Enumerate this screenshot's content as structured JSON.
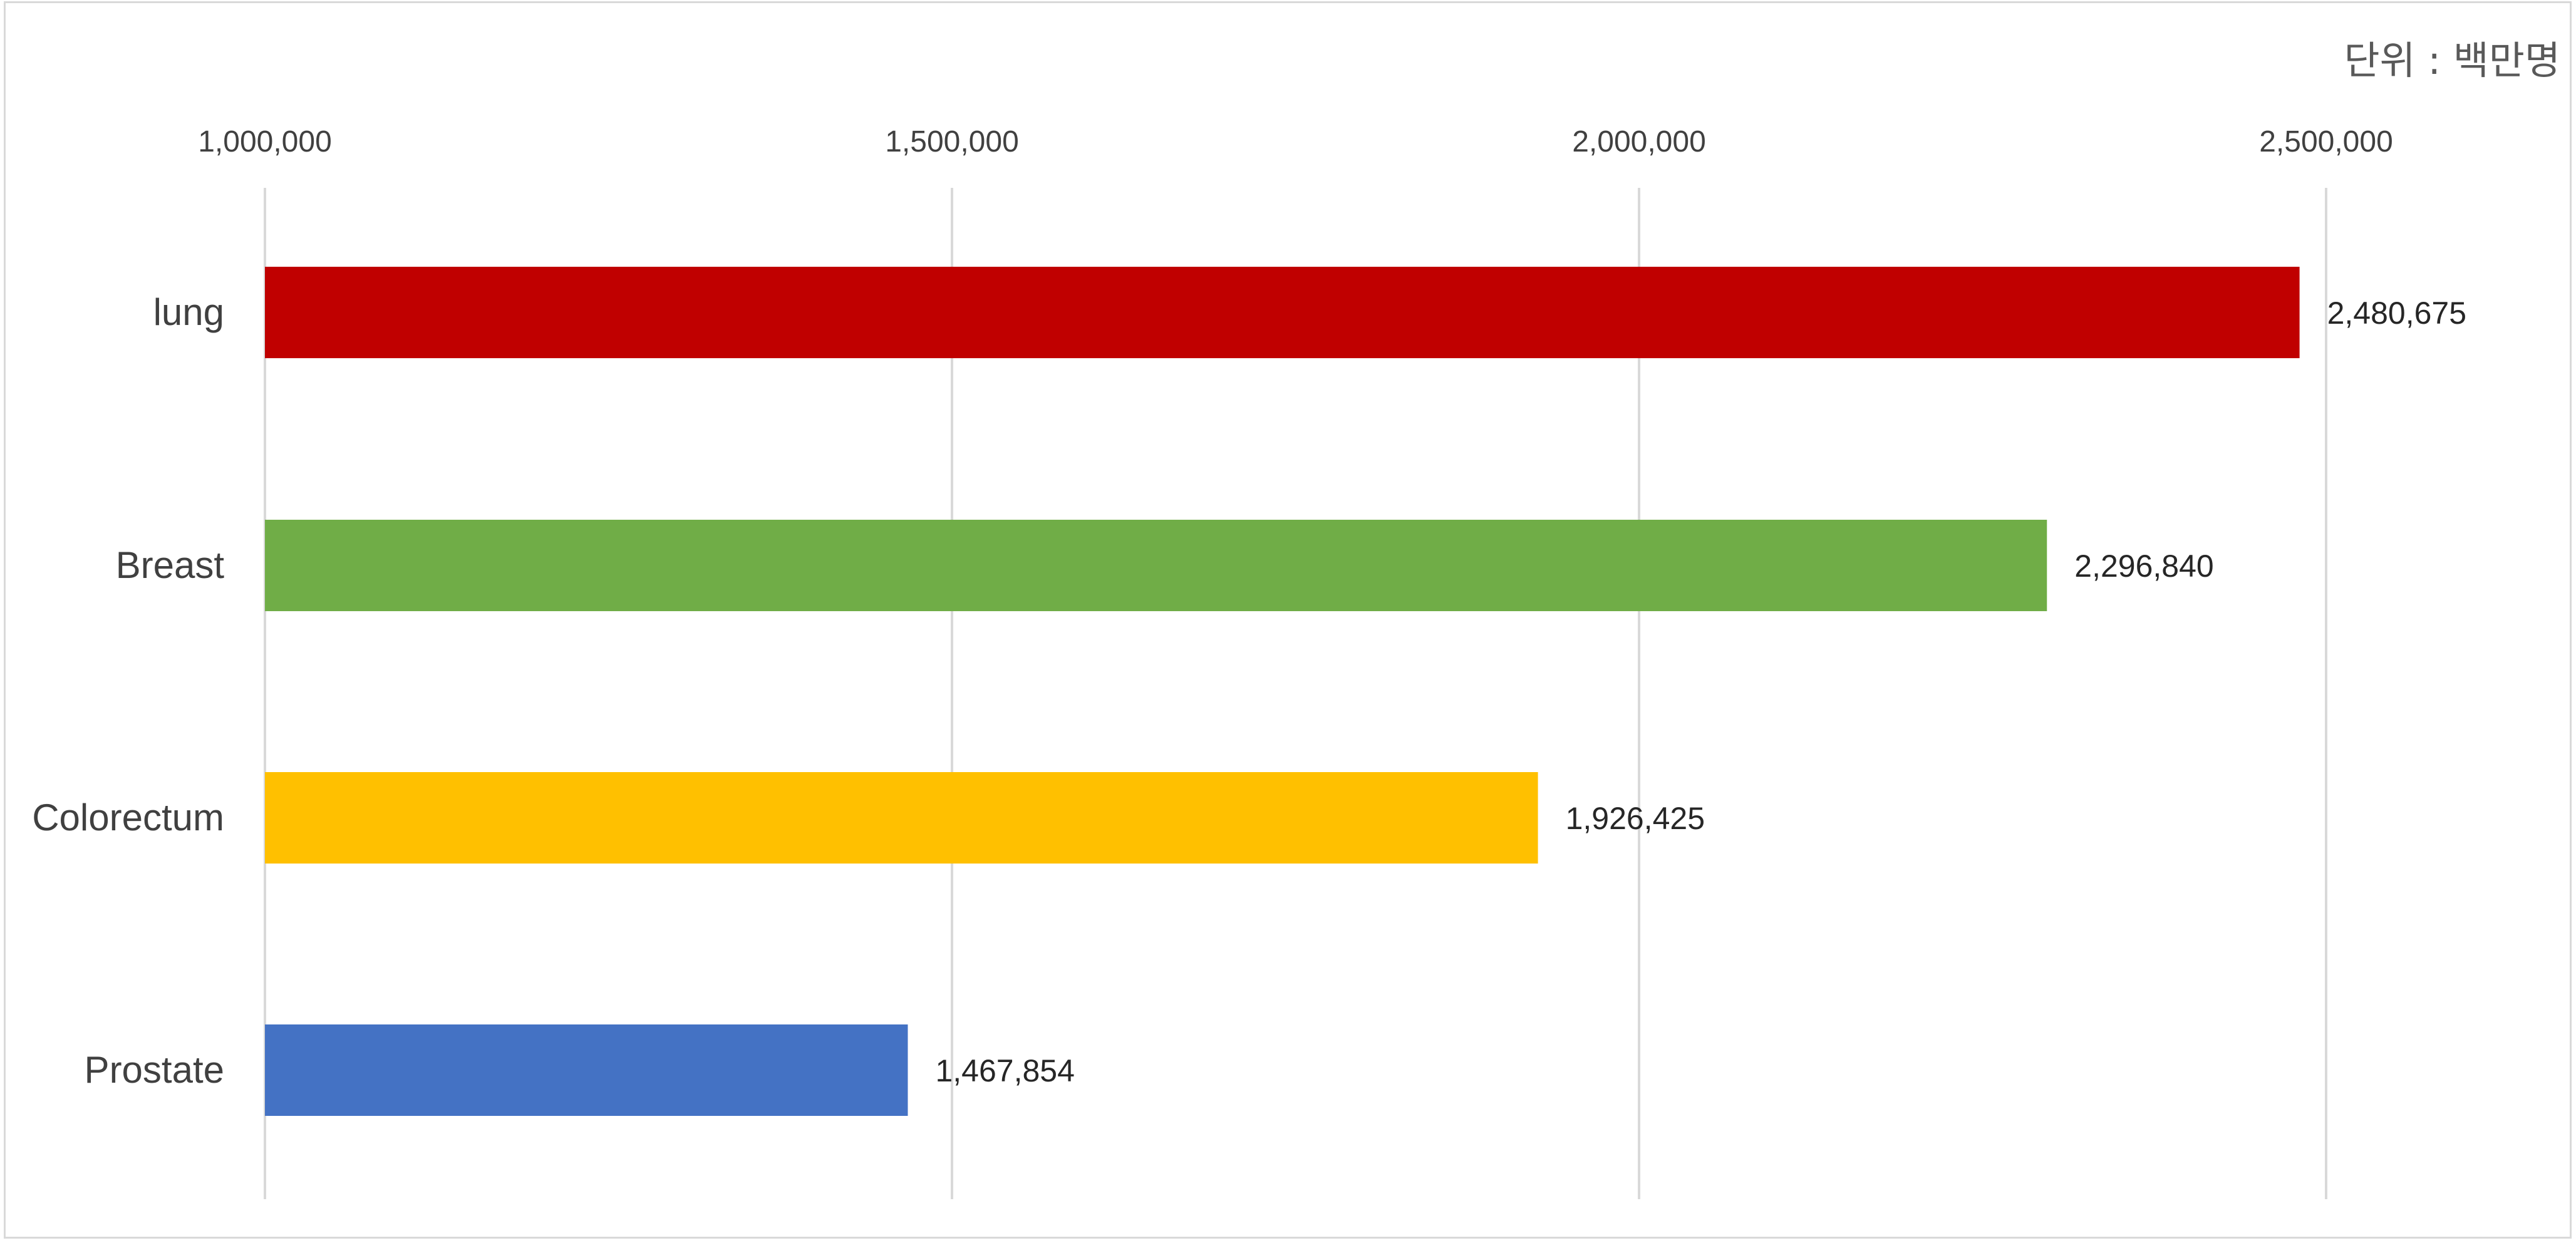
{
  "chart_data": {
    "type": "bar",
    "orientation": "horizontal",
    "unit_label": "단위 : 백만명",
    "categories": [
      "lung",
      "Breast",
      "Colorectum",
      "Prostate"
    ],
    "values": [
      2480675,
      2296840,
      1926425,
      1467854
    ],
    "value_labels": [
      "2,480,675",
      "2,296,840",
      "1,926,425",
      "1,467,854"
    ],
    "bar_colors": [
      "#C00000",
      "#70AD47",
      "#FFC000",
      "#4472C4"
    ],
    "xlim": [
      1000000,
      2500000
    ],
    "x_ticks": [
      1000000,
      1500000,
      2000000,
      2500000
    ],
    "x_tick_labels": [
      "1,000,000",
      "1,500,000",
      "2,000,000",
      "2,500,000"
    ],
    "x_axis_position": "top",
    "grid": true,
    "legend": "none"
  }
}
